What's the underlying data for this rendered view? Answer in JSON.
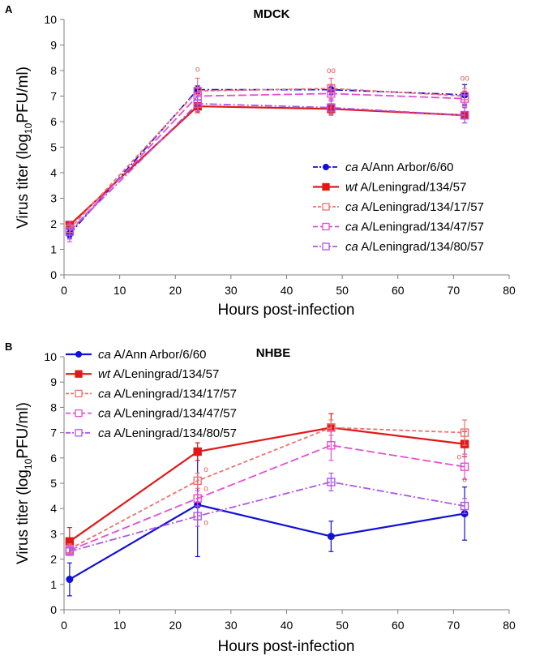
{
  "chart_data": [
    {
      "type": "line",
      "panel_letter": "A",
      "title": "MDCK",
      "xlabel": "Hours post-infection",
      "ylabel_parts": [
        "Virus titer (log",
        "10",
        "PFU/ml)"
      ],
      "xlim": [
        0,
        80
      ],
      "ylim": [
        0,
        10
      ],
      "xticks": [
        0,
        10,
        20,
        30,
        40,
        50,
        60,
        70,
        80
      ],
      "yticks": [
        0,
        1,
        2,
        3,
        4,
        5,
        6,
        7,
        8,
        9,
        10
      ],
      "x": [
        1,
        24,
        48,
        72
      ],
      "legend_position": "bottom-right",
      "series": [
        {
          "prefix": "ca",
          "name": "A/Ann Arbor/6/60",
          "color": "#1010d8",
          "dash": "9 3 2 3",
          "marker": "circle",
          "filled": true,
          "values": [
            1.6,
            7.25,
            7.25,
            7.05
          ],
          "err": [
            0.15,
            0.15,
            0.2,
            0.4
          ]
        },
        {
          "prefix": "wt",
          "name": "A/Leningrad/134/57",
          "color": "#e01818",
          "dash": "",
          "marker": "square",
          "filled": true,
          "values": [
            1.95,
            6.6,
            6.5,
            6.25
          ],
          "err": [
            0.15,
            0.25,
            0.2,
            0.3
          ]
        },
        {
          "prefix": "ca",
          "name": "A/Leningrad/134/17/57",
          "color": "#f07070",
          "dash": "5 3",
          "marker": "square",
          "filled": false,
          "values": [
            1.8,
            7.2,
            7.3,
            7.0
          ],
          "err": [
            0.15,
            0.5,
            0.4,
            0.3
          ]
        },
        {
          "prefix": "ca",
          "name": "A/Leningrad/134/47/57",
          "color": "#e44fd4",
          "dash": "10 4",
          "marker": "square",
          "filled": false,
          "values": [
            1.7,
            7.0,
            7.1,
            6.9
          ],
          "err": [
            0.4,
            0.3,
            0.3,
            0.3
          ]
        },
        {
          "prefix": "ca",
          "name": "A/Leningrad/134/80/57",
          "color": "#b055e8",
          "dash": "9 3 2 3",
          "marker": "square",
          "filled": false,
          "values": [
            1.7,
            6.7,
            6.55,
            6.25
          ],
          "err": [
            0.3,
            0.3,
            0.3,
            0.3
          ]
        }
      ],
      "annotations": [
        {
          "text": "o",
          "x": 24,
          "y": 7.95
        },
        {
          "text": "oo",
          "x": 48,
          "y": 7.9
        },
        {
          "text": "oo",
          "x": 72,
          "y": 7.6
        }
      ]
    },
    {
      "type": "line",
      "panel_letter": "B",
      "title": "NHBE",
      "xlabel": "Hours post-infection",
      "ylabel_parts": [
        "Virus titer (log",
        "10",
        "PFU/ml)"
      ],
      "xlim": [
        0,
        80
      ],
      "ylim": [
        0,
        10
      ],
      "xticks": [
        0,
        10,
        20,
        30,
        40,
        50,
        60,
        70,
        80
      ],
      "yticks": [
        0,
        1,
        2,
        3,
        4,
        5,
        6,
        7,
        8,
        9,
        10
      ],
      "x": [
        1,
        24,
        48,
        72
      ],
      "legend_position": "top-left",
      "series": [
        {
          "prefix": "ca",
          "name": "A/Ann Arbor/6/60",
          "color": "#1010d8",
          "dash": "",
          "marker": "circle",
          "filled": true,
          "values": [
            1.2,
            4.15,
            2.9,
            3.8
          ],
          "err": [
            0.65,
            2.05,
            0.6,
            1.05
          ]
        },
        {
          "prefix": "wt",
          "name": "A/Leningrad/134/57",
          "color": "#e01818",
          "dash": "",
          "marker": "square",
          "filled": true,
          "values": [
            2.7,
            6.25,
            7.2,
            6.55
          ],
          "err": [
            0.55,
            0.35,
            0.55,
            0.5
          ]
        },
        {
          "prefix": "ca",
          "name": "A/Leningrad/134/17/57",
          "color": "#f07070",
          "dash": "5 3",
          "marker": "square",
          "filled": false,
          "values": [
            2.4,
            5.1,
            7.2,
            7.0
          ],
          "err": [
            0.2,
            0.3,
            0.3,
            0.5
          ]
        },
        {
          "prefix": "ca",
          "name": "A/Leningrad/134/47/57",
          "color": "#e44fd4",
          "dash": "10 4",
          "marker": "square",
          "filled": false,
          "values": [
            2.35,
            4.4,
            6.5,
            5.65
          ],
          "err": [
            0.2,
            0.3,
            0.6,
            0.5
          ]
        },
        {
          "prefix": "ca",
          "name": "A/Leningrad/134/80/57",
          "color": "#b055e8",
          "dash": "9 3 2 3",
          "marker": "square",
          "filled": false,
          "values": [
            2.3,
            3.7,
            5.05,
            4.1
          ],
          "err": [
            0.15,
            0.4,
            0.35,
            0.3
          ]
        }
      ],
      "annotations": [
        {
          "text": "o",
          "x": 25.5,
          "y": 5.45
        },
        {
          "text": "o",
          "x": 25.5,
          "y": 4.7
        },
        {
          "text": "o",
          "x": 25.5,
          "y": 3.35
        },
        {
          "text": "o",
          "x": 71,
          "y": 5.95
        },
        {
          "text": "o",
          "x": 72,
          "y": 5.05
        }
      ]
    }
  ]
}
